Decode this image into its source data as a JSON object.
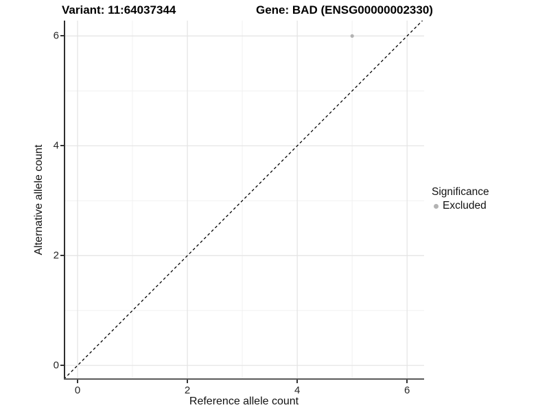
{
  "figure": {
    "title_left": "Variant: 11:64037344",
    "title_right": "Gene: BAD (ENSG00000002330)"
  },
  "legend": {
    "title": "Significance",
    "items": [
      {
        "label": "Excluded",
        "marker": "dot",
        "marker_color": "#b3b3b3"
      }
    ]
  },
  "chart_data": {
    "type": "scatter",
    "titles": [
      "Variant: 11:64037344",
      "Gene: BAD (ENSG00000002330)"
    ],
    "xlabel": "Reference allele count",
    "ylabel": "Alternative allele count",
    "xlim": [
      -0.25,
      6.31
    ],
    "ylim": [
      -0.26,
      6.28
    ],
    "x_ticks": [
      0,
      2,
      4,
      6
    ],
    "y_ticks": [
      0,
      2,
      4,
      6
    ],
    "x_minor_ticks": [
      1,
      3,
      5
    ],
    "y_minor_ticks": [
      1,
      3,
      5
    ],
    "grid": true,
    "legend_position": "right",
    "series": [
      {
        "name": "Excluded",
        "color": "#b3b3b3",
        "points": [
          {
            "x": 5,
            "y": 6
          }
        ]
      }
    ],
    "reference_line": {
      "kind": "identity",
      "slope": 1,
      "intercept": 0,
      "style": "dashed",
      "color": "#000000"
    }
  },
  "colors": {
    "background": "#ffffff",
    "grid_major": "#e3e3e3",
    "grid_minor": "#f1f1f1",
    "axis_line_left": "#2e2e2e",
    "axis_line_bottom": "#595959",
    "tick_mark": "#333333",
    "point": "#b3b3b3"
  }
}
